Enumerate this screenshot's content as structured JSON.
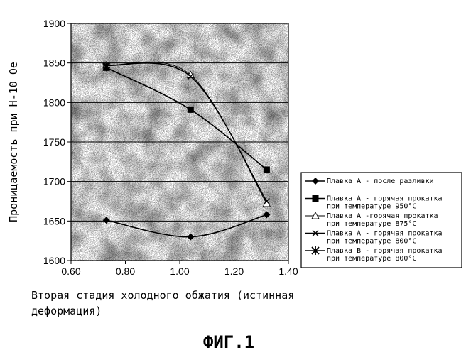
{
  "figure_caption": "ФИГ.1",
  "chart_data": {
    "type": "line",
    "title": "",
    "xlabel_lines": [
      "Вторая стадия холодного обжатия (истинная",
      "деформация)"
    ],
    "ylabel": "Проницаемость при H-10 Oe",
    "xlim": [
      0.6,
      1.4
    ],
    "ylim": [
      1600,
      1900
    ],
    "x_ticks": [
      "0.60",
      "0.80",
      "1.00",
      "1.20",
      "1.40"
    ],
    "y_ticks": [
      "1600",
      "1650",
      "1700",
      "1750",
      "1800",
      "1850",
      "1900"
    ],
    "grid": "horizontal",
    "legend_position": "right",
    "series": [
      {
        "name": "Плавка А - после разливки",
        "marker": "diamond",
        "x": [
          0.73,
          1.04,
          1.32
        ],
        "y": [
          1651,
          1630,
          1658
        ]
      },
      {
        "name": "Плавка А - горячая прокатка при температуре 950°C",
        "marker": "square",
        "x": [
          0.73,
          1.04,
          1.32
        ],
        "y": [
          1844,
          1791,
          1715
        ]
      },
      {
        "name": "Плавка А -горячая прокатка при температуре 875°C",
        "marker": "triangle",
        "x": [
          0.73,
          1.04,
          1.32
        ],
        "y": [
          1847,
          1835,
          1672
        ]
      },
      {
        "name": "Плавка А - горячая прокатка при температуре 800°C",
        "marker": "x",
        "x": [
          0.73,
          1.04,
          1.32
        ],
        "y": [
          1847,
          1833,
          1675
        ]
      },
      {
        "name": "Плавка В - горячая прокатка при температуре 800°C",
        "marker": "star",
        "x": [
          0.73
        ],
        "y": [
          1845
        ]
      }
    ],
    "legend_lines": [
      [
        "Плавка А - после разливки"
      ],
      [
        "Плавка А - горячая прокатка",
        "при температуре 950°C"
      ],
      [
        "Плавка А -горячая прокатка",
        "при температуре 875°C"
      ],
      [
        "Плавка А - горячая прокатка",
        "при температуре 800°C"
      ],
      [
        "Плавка В - горячая прокатка",
        "при температуре 800°C"
      ]
    ]
  }
}
